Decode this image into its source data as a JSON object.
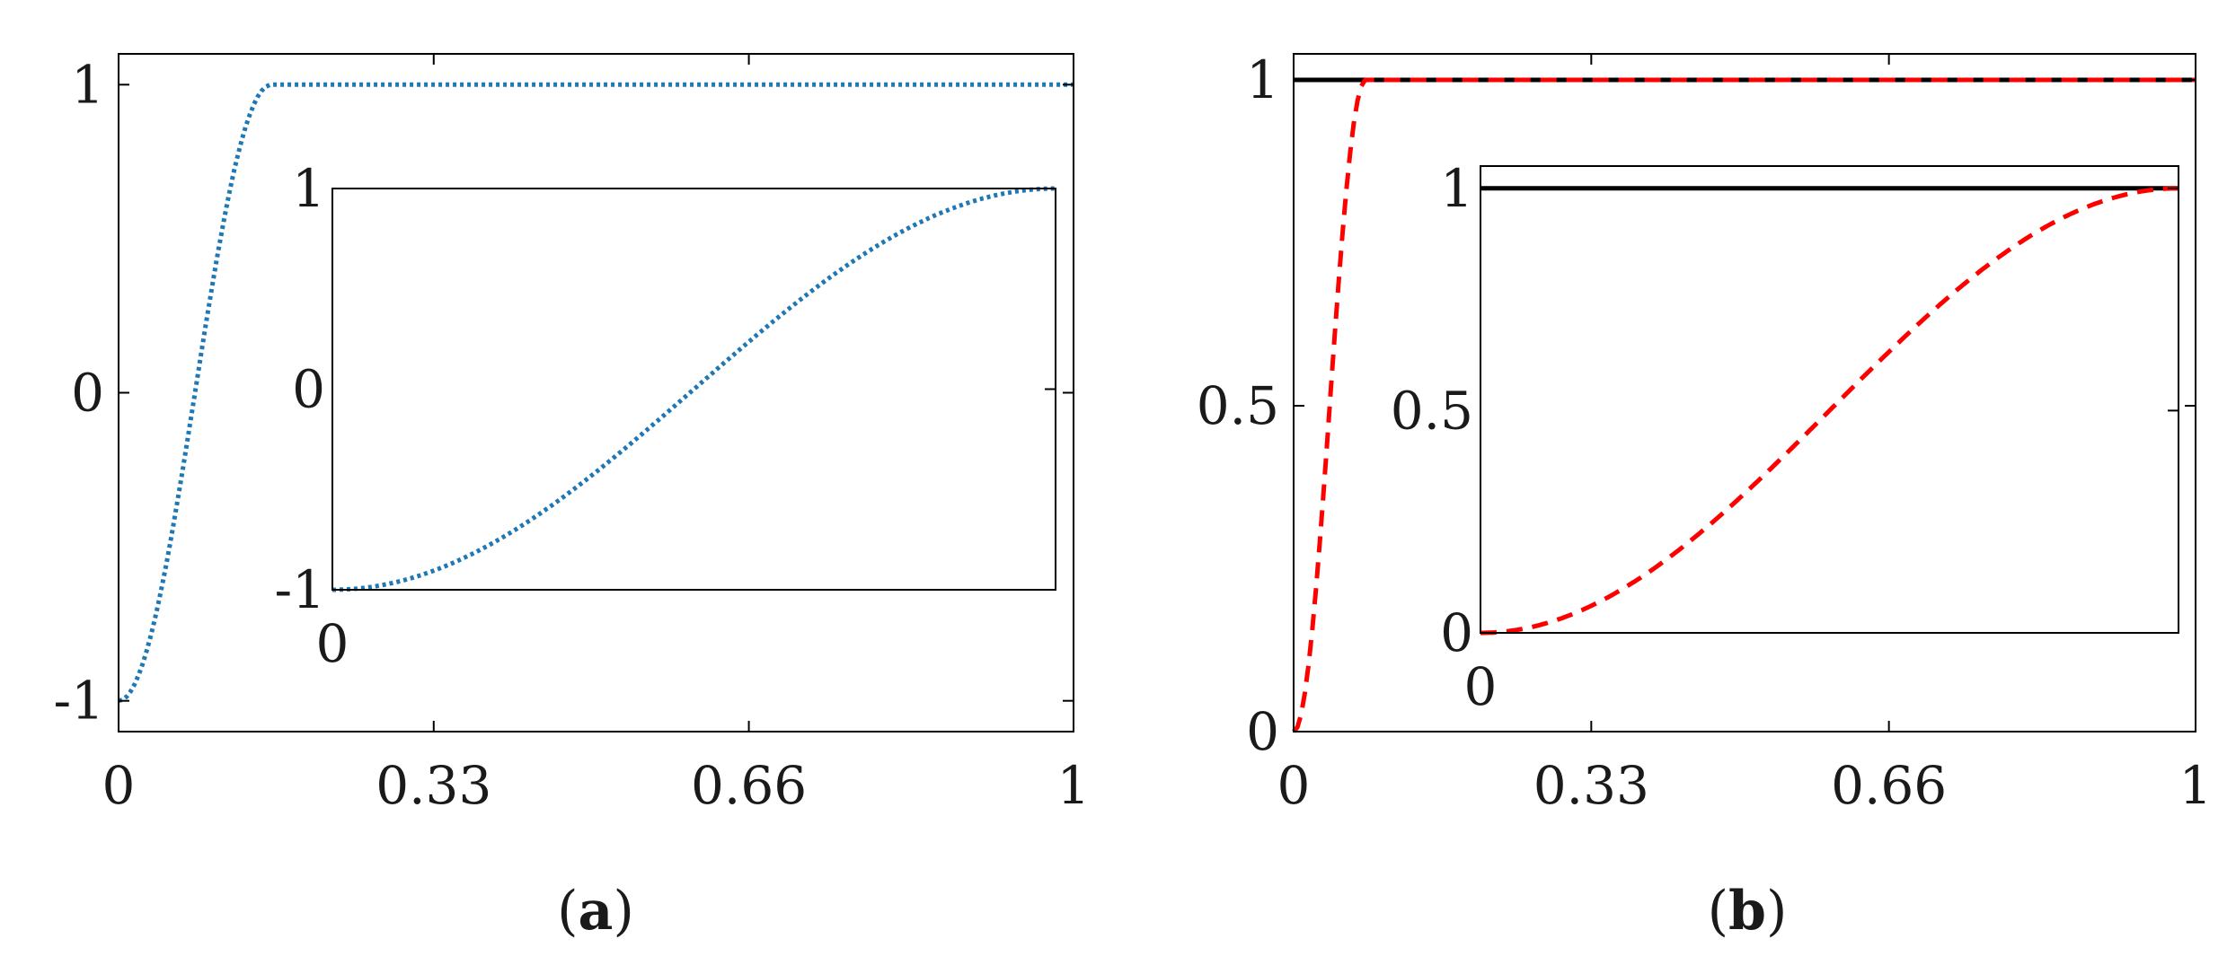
{
  "chart_data": [
    {
      "panel_label_paren_open": "(",
      "panel_label_letter": "a",
      "panel_label_paren_close": ")",
      "type": "line",
      "main": {
        "xlim": [
          0,
          1
        ],
        "ylim": [
          -1.1,
          1.1
        ],
        "xticks": [
          0,
          0.33,
          0.66,
          1
        ],
        "xtick_labels": [
          "0",
          "0.33",
          "0.66",
          "1"
        ],
        "yticks": [
          -1,
          0,
          1
        ],
        "ytick_labels": [
          "-1",
          "0",
          "1"
        ],
        "grid": false,
        "series": [
          {
            "style": "dotted",
            "color": "#1f77b4",
            "ramp_from": -1,
            "ramp_to": 1,
            "ramp_end_x": 0.16,
            "x": [
              0,
              0.02,
              0.04,
              0.06,
              0.08,
              0.1,
              0.12,
              0.14,
              0.16,
              0.5,
              1
            ],
            "y": [
              -1,
              -0.96,
              -0.83,
              -0.55,
              -0.19,
              0.2,
              0.56,
              0.85,
              1,
              1,
              1
            ]
          }
        ]
      },
      "inset": {
        "xlim": [
          0,
          1
        ],
        "ylim": [
          -1,
          1
        ],
        "xtick_labels": [
          "0"
        ],
        "ytick_labels": [
          "-1",
          "0",
          "1"
        ],
        "series": [
          {
            "style": "dotted",
            "color": "#1f77b4",
            "ramp_from": -1,
            "ramp_to": 1,
            "x": [
              0,
              0.1,
              0.2,
              0.3,
              0.4,
              0.5,
              0.6,
              0.7,
              0.8,
              0.9,
              1
            ],
            "y": [
              -1,
              -0.95,
              -0.81,
              -0.59,
              -0.31,
              0,
              0.31,
              0.59,
              0.81,
              0.95,
              1
            ]
          }
        ]
      }
    },
    {
      "panel_label_paren_open": "(",
      "panel_label_letter": "b",
      "panel_label_paren_close": ")",
      "type": "line",
      "main": {
        "xlim": [
          0,
          1
        ],
        "ylim": [
          0,
          1.04
        ],
        "xticks": [
          0,
          0.33,
          0.66,
          1
        ],
        "xtick_labels": [
          "0",
          "0.33",
          "0.66",
          "1"
        ],
        "yticks": [
          0,
          0.5,
          1
        ],
        "ytick_labels": [
          "0",
          "0.5",
          "1"
        ],
        "grid": false,
        "series": [
          {
            "style": "solid",
            "color": "#000000",
            "x": [
              0,
              1
            ],
            "y": [
              1,
              1
            ]
          },
          {
            "style": "dashed",
            "color": "#ff0000",
            "ramp_from": 0,
            "ramp_to": 1,
            "ramp_end_x": 0.08,
            "x": [
              0,
              0.02,
              0.04,
              0.06,
              0.08,
              0.5,
              1
            ],
            "y": [
              0,
              0.15,
              0.5,
              0.85,
              1,
              1,
              1
            ]
          }
        ]
      },
      "inset": {
        "xlim": [
          0,
          1
        ],
        "ylim": [
          0,
          1.05
        ],
        "xtick_labels": [
          "0"
        ],
        "ytick_labels": [
          "0",
          "0.5",
          "1"
        ],
        "series": [
          {
            "style": "solid",
            "color": "#000000",
            "x": [
              0,
              1
            ],
            "y": [
              1,
              1
            ]
          },
          {
            "style": "dashed",
            "color": "#ff0000",
            "ramp_from": 0,
            "ramp_to": 1,
            "x": [
              0,
              0.1,
              0.2,
              0.3,
              0.4,
              0.5,
              0.6,
              0.7,
              0.8,
              0.9,
              1
            ],
            "y": [
              0,
              0.02,
              0.1,
              0.21,
              0.35,
              0.5,
              0.65,
              0.79,
              0.9,
              0.98,
              1
            ]
          }
        ]
      }
    }
  ]
}
